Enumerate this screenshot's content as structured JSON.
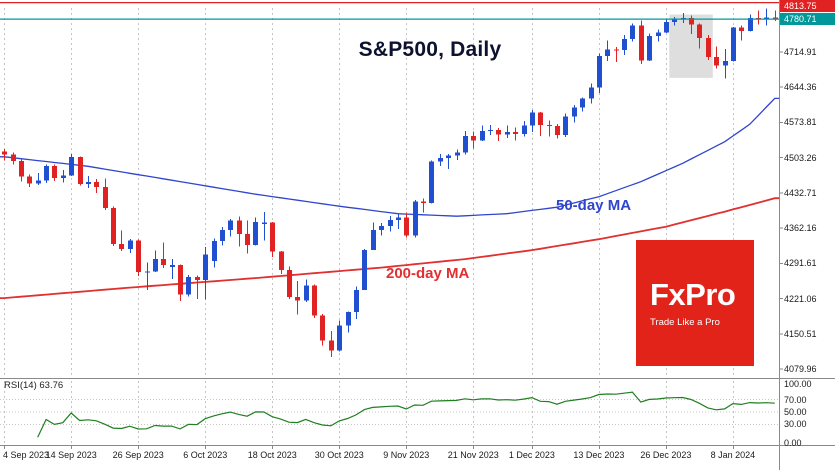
{
  "header": {
    "title": "S&P500, Daily"
  },
  "overlays": {
    "ma50_label": "50-day MA",
    "ma200_label": "200-day MA"
  },
  "logo": {
    "brand": "FxPro",
    "tagline": "Trade Like a Pro"
  },
  "rsi": {
    "label": "RSI(14)",
    "value": "63.76",
    "axis_labels": [
      "100.00",
      "70.00",
      "50.00",
      "30.00",
      "0.00"
    ],
    "levels": [
      70,
      50,
      30
    ]
  },
  "price_axis": {
    "upper_line": {
      "label": "4813.75",
      "value": 4813.75
    },
    "current_line": {
      "label": "4780.71",
      "value": 4780.71
    },
    "labels": [
      "4714.91",
      "4644.36",
      "4573.81",
      "4503.26",
      "4432.71",
      "4362.16",
      "4291.61",
      "4221.06",
      "4150.51",
      "4079.96"
    ]
  },
  "colors": {
    "up": "#2050d0",
    "down": "#e02222",
    "ma50": "#2f45cc",
    "ma200": "#e03030",
    "rsi": "#207f20",
    "bid": "#009898",
    "ask": "#e02222",
    "grid": "#c4c4c4",
    "border": "#8a8a8a",
    "highlight": "#d6d6d6",
    "logo_red": "#e2231a",
    "title": "#0d1230"
  },
  "chart_data": {
    "type": "candlestick",
    "symbol": "S&P500",
    "timeframe": "Daily",
    "title": "S&P500, Daily",
    "price_range": {
      "top": 4803.0,
      "bottom": 4063.9
    },
    "current_price": 4780.71,
    "upper_line_price": 4813.75,
    "ohlc_format": [
      "open",
      "high",
      "low",
      "close"
    ],
    "x_ticks": [
      {
        "index": 0,
        "label": "4 Sep 2023"
      },
      {
        "index": 8,
        "label": "14 Sep 2023"
      },
      {
        "index": 16,
        "label": "26 Sep 2023"
      },
      {
        "index": 24,
        "label": "6 Oct 2023"
      },
      {
        "index": 32,
        "label": "18 Oct 2023"
      },
      {
        "index": 40,
        "label": "30 Oct 2023"
      },
      {
        "index": 48,
        "label": "9 Nov 2023"
      },
      {
        "index": 56,
        "label": "21 Nov 2023"
      },
      {
        "index": 63,
        "label": "1 Dec 2023"
      },
      {
        "index": 71,
        "label": "13 Dec 2023"
      },
      {
        "index": 79,
        "label": "26 Dec 2023"
      },
      {
        "index": 87,
        "label": "8 Jan 2024"
      }
    ],
    "candles": [
      [
        4516,
        4521,
        4498,
        4510
      ],
      [
        4510,
        4514,
        4490,
        4497
      ],
      [
        4497,
        4500,
        4455,
        4465
      ],
      [
        4465,
        4470,
        4444,
        4451
      ],
      [
        4451,
        4473,
        4448,
        4457
      ],
      [
        4457,
        4490,
        4452,
        4487
      ],
      [
        4487,
        4490,
        4456,
        4462
      ],
      [
        4462,
        4479,
        4453,
        4467
      ],
      [
        4467,
        4511,
        4466,
        4505
      ],
      [
        4505,
        4506,
        4447,
        4450
      ],
      [
        4450,
        4466,
        4442,
        4454
      ],
      [
        4454,
        4460,
        4432,
        4444
      ],
      [
        4444,
        4461,
        4398,
        4402
      ],
      [
        4402,
        4405,
        4326,
        4330
      ],
      [
        4330,
        4357,
        4316,
        4320
      ],
      [
        4320,
        4340,
        4312,
        4337
      ],
      [
        4337,
        4339,
        4266,
        4274
      ],
      [
        4274,
        4293,
        4238,
        4275
      ],
      [
        4275,
        4317,
        4274,
        4300
      ],
      [
        4300,
        4333,
        4282,
        4288
      ],
      [
        4284,
        4300,
        4260,
        4288
      ],
      [
        4288,
        4289,
        4216,
        4229
      ],
      [
        4229,
        4268,
        4225,
        4264
      ],
      [
        4264,
        4267,
        4220,
        4258
      ],
      [
        4258,
        4324,
        4219,
        4309
      ],
      [
        4296,
        4341,
        4283,
        4336
      ],
      [
        4336,
        4364,
        4327,
        4358
      ],
      [
        4358,
        4380,
        4345,
        4377
      ],
      [
        4377,
        4385,
        4325,
        4350
      ],
      [
        4350,
        4377,
        4311,
        4328
      ],
      [
        4328,
        4383,
        4327,
        4374
      ],
      [
        4370,
        4394,
        4337,
        4373
      ],
      [
        4373,
        4374,
        4304,
        4315
      ],
      [
        4315,
        4316,
        4270,
        4278
      ],
      [
        4278,
        4285,
        4220,
        4224
      ],
      [
        4224,
        4256,
        4189,
        4217
      ],
      [
        4217,
        4259,
        4214,
        4247
      ],
      [
        4247,
        4249,
        4182,
        4187
      ],
      [
        4187,
        4190,
        4127,
        4137
      ],
      [
        4137,
        4156,
        4104,
        4117
      ],
      [
        4117,
        4177,
        4115,
        4167
      ],
      [
        4167,
        4195,
        4153,
        4194
      ],
      [
        4194,
        4245,
        4180,
        4238
      ],
      [
        4238,
        4320,
        4238,
        4318
      ],
      [
        4318,
        4373,
        4318,
        4358
      ],
      [
        4358,
        4372,
        4347,
        4366
      ],
      [
        4366,
        4386,
        4355,
        4378
      ],
      [
        4378,
        4391,
        4360,
        4383
      ],
      [
        4383,
        4393,
        4343,
        4347
      ],
      [
        4347,
        4418,
        4343,
        4415
      ],
      [
        4415,
        4421,
        4393,
        4412
      ],
      [
        4412,
        4498,
        4411,
        4496
      ],
      [
        4496,
        4511,
        4487,
        4503
      ],
      [
        4503,
        4511,
        4481,
        4508
      ],
      [
        4508,
        4520,
        4499,
        4514
      ],
      [
        4514,
        4557,
        4510,
        4547
      ],
      [
        4547,
        4556,
        4522,
        4538
      ],
      [
        4538,
        4568,
        4537,
        4557
      ],
      [
        4557,
        4569,
        4549,
        4559
      ],
      [
        4559,
        4563,
        4537,
        4550
      ],
      [
        4550,
        4568,
        4543,
        4555
      ],
      [
        4555,
        4564,
        4538,
        4551
      ],
      [
        4551,
        4577,
        4546,
        4568
      ],
      [
        4568,
        4599,
        4555,
        4594
      ],
      [
        4594,
        4595,
        4547,
        4569
      ],
      [
        4569,
        4578,
        4546,
        4567
      ],
      [
        4567,
        4571,
        4542,
        4549
      ],
      [
        4549,
        4592,
        4545,
        4586
      ],
      [
        4586,
        4609,
        4574,
        4604
      ],
      [
        4604,
        4624,
        4596,
        4622
      ],
      [
        4622,
        4652,
        4612,
        4644
      ],
      [
        4644,
        4712,
        4633,
        4707
      ],
      [
        4707,
        4738,
        4697,
        4720
      ],
      [
        4720,
        4725,
        4695,
        4719
      ],
      [
        4719,
        4749,
        4709,
        4741
      ],
      [
        4741,
        4772,
        4736,
        4768
      ],
      [
        4768,
        4778,
        4691,
        4698
      ],
      [
        4698,
        4752,
        4697,
        4747
      ],
      [
        4747,
        4760,
        4736,
        4754
      ],
      [
        4754,
        4780,
        4753,
        4775
      ],
      [
        4775,
        4785,
        4768,
        4781
      ],
      [
        4781,
        4793,
        4773,
        4783
      ],
      [
        4783,
        4788,
        4751,
        4770
      ],
      [
        4770,
        4772,
        4722,
        4743
      ],
      [
        4743,
        4749,
        4699,
        4705
      ],
      [
        4705,
        4726,
        4682,
        4688
      ],
      [
        4688,
        4721,
        4662,
        4697
      ],
      [
        4697,
        4765,
        4696,
        4764
      ],
      [
        4764,
        4768,
        4738,
        4757
      ],
      [
        4757,
        4790,
        4756,
        4783
      ],
      [
        4783,
        4798,
        4770,
        4780
      ],
      [
        4780,
        4802,
        4768,
        4784
      ],
      [
        4784,
        4798,
        4777,
        4780.71
      ]
    ],
    "ma50_keypoints": [
      [
        0,
        4505
      ],
      [
        10,
        4486
      ],
      [
        20,
        4458
      ],
      [
        30,
        4430
      ],
      [
        40,
        4406
      ],
      [
        47,
        4391
      ],
      [
        54,
        4386
      ],
      [
        60,
        4391
      ],
      [
        66,
        4404
      ],
      [
        71,
        4425
      ],
      [
        76,
        4455
      ],
      [
        81,
        4492
      ],
      [
        86,
        4535
      ],
      [
        89,
        4570
      ],
      [
        92,
        4622
      ]
    ],
    "ma200_keypoints": [
      [
        0,
        4222
      ],
      [
        15,
        4243
      ],
      [
        30,
        4262
      ],
      [
        45,
        4283
      ],
      [
        55,
        4300
      ],
      [
        63,
        4318
      ],
      [
        71,
        4340
      ],
      [
        79,
        4365
      ],
      [
        86,
        4395
      ],
      [
        92,
        4422
      ]
    ],
    "highlight_region": {
      "start_index": 80,
      "end_index": 84,
      "price_top": 4790,
      "price_bottom": 4663
    },
    "rsi_period": 14,
    "rsi_last": 63.76
  }
}
